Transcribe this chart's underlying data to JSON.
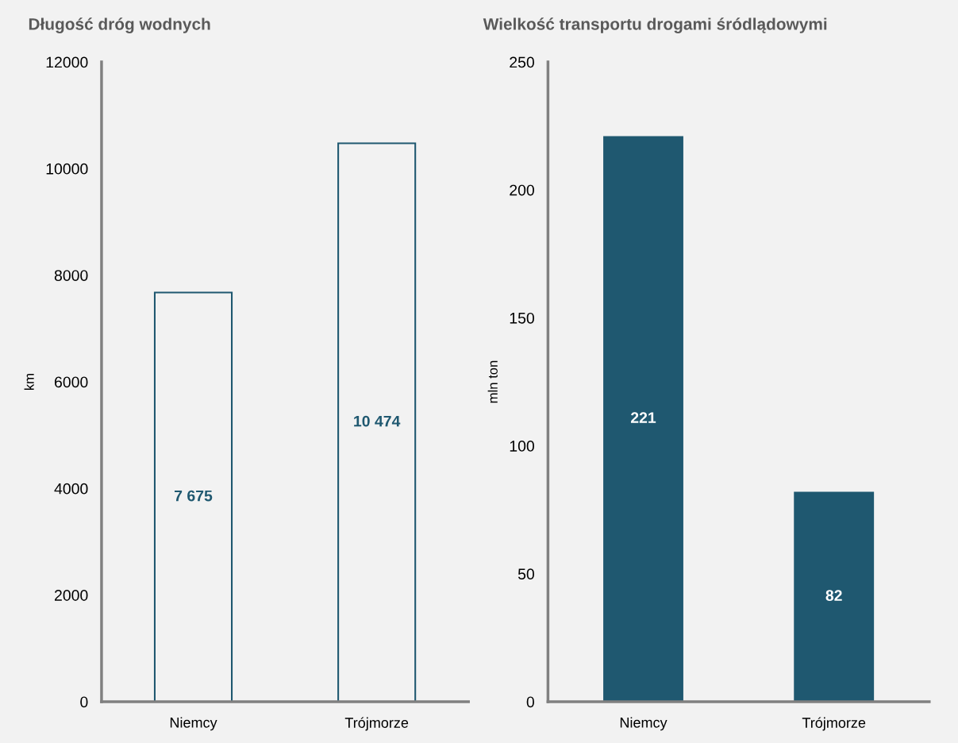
{
  "chart_data": [
    {
      "type": "bar",
      "title": "Długość dróg wodnych",
      "ylabel": "km",
      "categories": [
        "Niemcy",
        "Trójmorze"
      ],
      "values": [
        7675,
        10474
      ],
      "value_labels": [
        "7 675",
        "10 474"
      ],
      "color": "#1f5870",
      "colors": [
        "#f2f2f2",
        "#f2f2f2"
      ],
      "ylim": [
        0,
        12000
      ],
      "yticks": [
        0,
        2000,
        4000,
        6000,
        8000,
        10000,
        12000
      ],
      "grid": false,
      "legend": false
    },
    {
      "type": "bar",
      "title": "Wielkość transportu drogami śródlądowymi",
      "ylabel": "mln ton",
      "categories": [
        "Niemcy",
        "Trójmorze"
      ],
      "values": [
        221,
        82
      ],
      "data_labels": true,
      "color": "#1f5870",
      "ylim": [
        0,
        250
      ],
      "yticks": [
        0,
        50,
        100,
        150,
        200,
        250
      ],
      "grid": false,
      "legend": false
    }
  ]
}
